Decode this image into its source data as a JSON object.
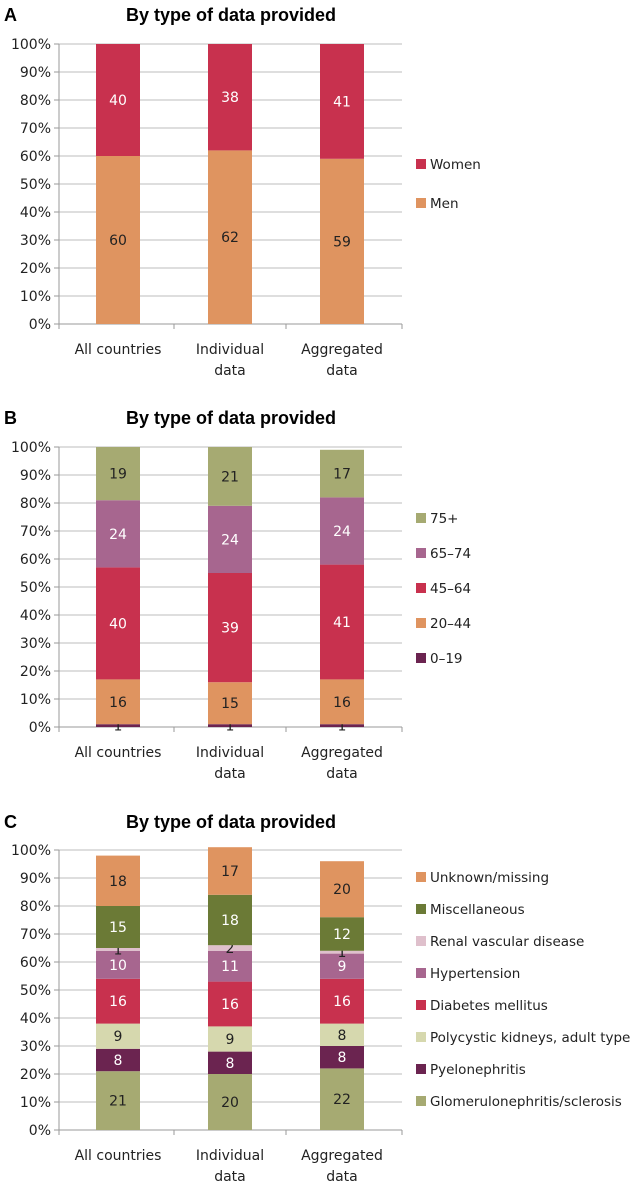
{
  "chart_data": [
    {
      "type": "bar",
      "stacked": true,
      "panel": "A",
      "title": "By type of data provided",
      "categories": [
        "All countries",
        "Individual data",
        "Aggregated data"
      ],
      "category_lines": [
        [
          "All countries"
        ],
        [
          "Individual",
          "data"
        ],
        [
          "Aggregated",
          "data"
        ]
      ],
      "ylim": [
        0,
        100
      ],
      "yticks": [
        "0%",
        "10%",
        "20%",
        "30%",
        "40%",
        "50%",
        "60%",
        "70%",
        "80%",
        "90%",
        "100%"
      ],
      "legend_position": "right",
      "series": [
        {
          "name": "Men",
          "color": "#df9460",
          "label_color": "#222222",
          "values": [
            60,
            62,
            59
          ]
        },
        {
          "name": "Women",
          "color": "#c8314e",
          "label_color": "#ffffff",
          "values": [
            40,
            38,
            41
          ]
        }
      ]
    },
    {
      "type": "bar",
      "stacked": true,
      "panel": "B",
      "title": "By type of data provided",
      "categories": [
        "All countries",
        "Individual data",
        "Aggregated data"
      ],
      "category_lines": [
        [
          "All countries"
        ],
        [
          "Individual",
          "data"
        ],
        [
          "Aggregated",
          "data"
        ]
      ],
      "ylim": [
        0,
        100
      ],
      "yticks": [
        "0%",
        "10%",
        "20%",
        "30%",
        "40%",
        "50%",
        "60%",
        "70%",
        "80%",
        "90%",
        "100%"
      ],
      "legend_position": "right",
      "series": [
        {
          "name": "0–19",
          "color": "#6b2450",
          "label_color": "#222222",
          "values": [
            1,
            1,
            1
          ]
        },
        {
          "name": "20–44",
          "color": "#df9460",
          "label_color": "#222222",
          "values": [
            16,
            15,
            16
          ]
        },
        {
          "name": "45–64",
          "color": "#c8314e",
          "label_color": "#ffffff",
          "values": [
            40,
            39,
            41
          ]
        },
        {
          "name": "65–74",
          "color": "#a7668f",
          "label_color": "#ffffff",
          "values": [
            24,
            24,
            24
          ]
        },
        {
          "name": "75+",
          "color": "#a6aa72",
          "label_color": "#222222",
          "values": [
            19,
            21,
            17
          ]
        }
      ]
    },
    {
      "type": "bar",
      "stacked": true,
      "panel": "C",
      "title": "By type of data provided",
      "categories": [
        "All countries",
        "Individual data",
        "Aggregated data"
      ],
      "category_lines": [
        [
          "All countries"
        ],
        [
          "Individual",
          "data"
        ],
        [
          "Aggregated",
          "data"
        ]
      ],
      "ylim": [
        0,
        100
      ],
      "yticks": [
        "0%",
        "10%",
        "20%",
        "30%",
        "40%",
        "50%",
        "60%",
        "70%",
        "80%",
        "90%",
        "100%"
      ],
      "legend_position": "right",
      "series": [
        {
          "name": "Glomerulonephritis/sclerosis",
          "color": "#a6aa72",
          "label_color": "#222222",
          "values": [
            21,
            20,
            22
          ]
        },
        {
          "name": "Pyelonephritis",
          "color": "#6b2450",
          "label_color": "#ffffff",
          "values": [
            8,
            8,
            8
          ]
        },
        {
          "name": "Polycystic kidneys, adult type",
          "color": "#d6d8ae",
          "label_color": "#222222",
          "values": [
            9,
            9,
            8
          ]
        },
        {
          "name": "Diabetes mellitus",
          "color": "#c8314e",
          "label_color": "#ffffff",
          "values": [
            16,
            16,
            16
          ]
        },
        {
          "name": "Hypertension",
          "color": "#a7668f",
          "label_color": "#ffffff",
          "values": [
            10,
            11,
            9
          ]
        },
        {
          "name": "Renal vascular disease",
          "color": "#dfc0cc",
          "label_color": "#222222",
          "values": [
            1,
            2,
            1
          ]
        },
        {
          "name": "Miscellaneous",
          "color": "#6b7a36",
          "label_color": "#ffffff",
          "values": [
            15,
            18,
            12
          ]
        },
        {
          "name": "Unknown/missing",
          "color": "#df9460",
          "label_color": "#222222",
          "values": [
            18,
            17,
            20
          ]
        }
      ]
    }
  ]
}
